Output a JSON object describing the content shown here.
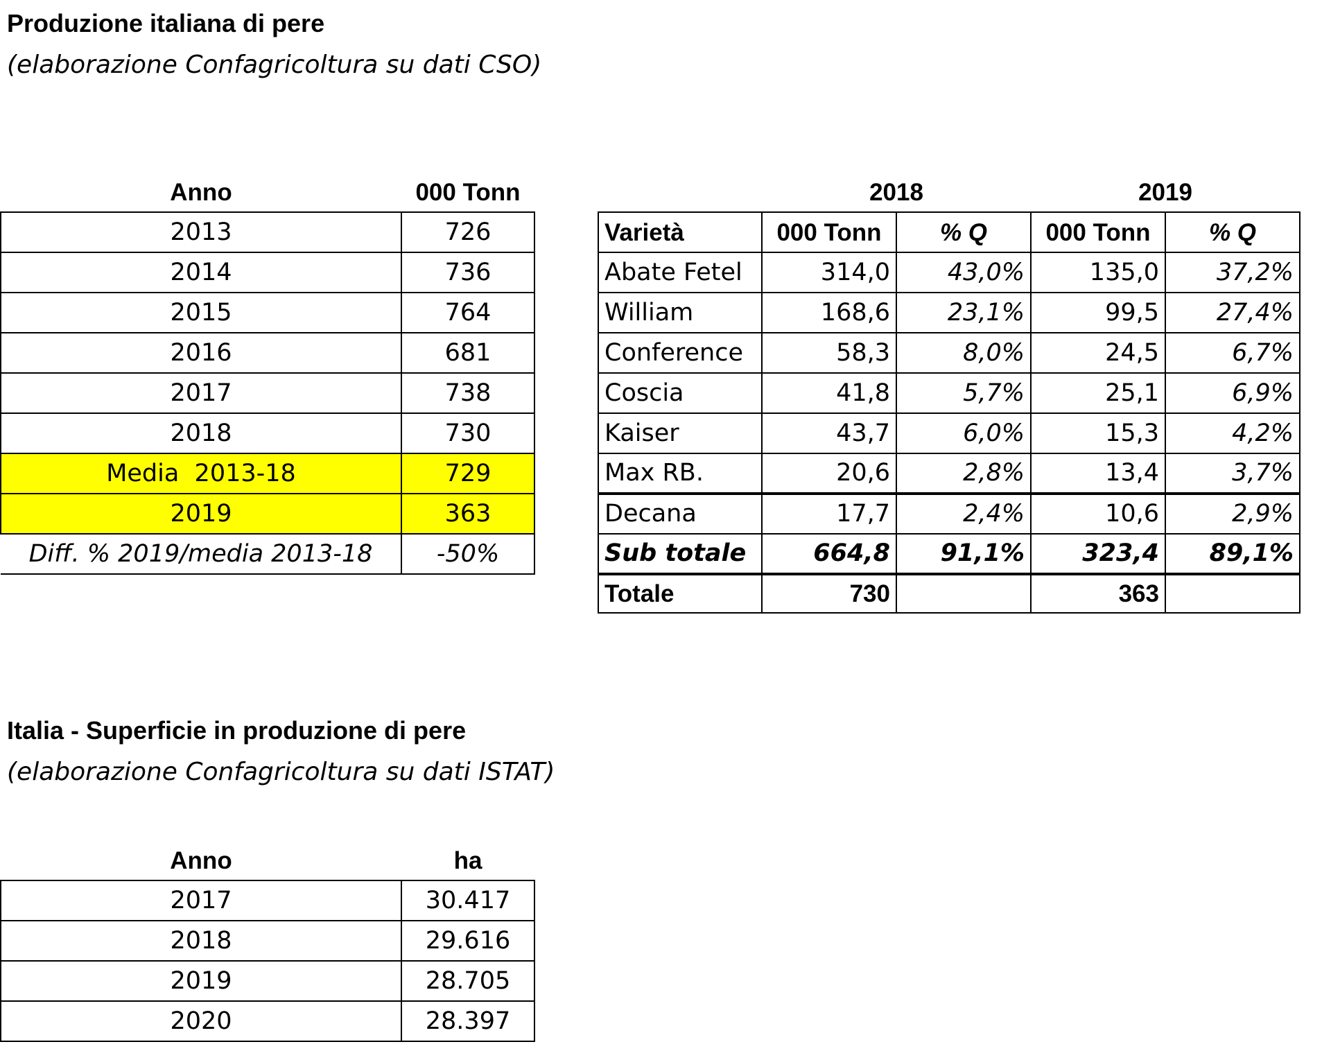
{
  "section1": {
    "title": "Produzione italiana di pere",
    "subtitle": "(elaborazione Confagricoltura su dati CSO)"
  },
  "production_table": {
    "headers": [
      "Anno",
      "000 Tonn"
    ],
    "rows": [
      {
        "year": "2013",
        "value": "726"
      },
      {
        "year": "2014",
        "value": "736"
      },
      {
        "year": "2015",
        "value": "764"
      },
      {
        "year": "2016",
        "value": "681"
      },
      {
        "year": "2017",
        "value": "738"
      },
      {
        "year": "2018",
        "value": "730"
      }
    ],
    "average": {
      "label": "Media  2013-18",
      "value": "729"
    },
    "current": {
      "label": "2019",
      "value": "363"
    },
    "diff": {
      "label": "Diff. % 2019/media 2013-18",
      "value": "-50%"
    }
  },
  "variety_table": {
    "year_headers": [
      "2018",
      "2019"
    ],
    "column_headers": [
      "Varietà",
      "000 Tonn",
      "% Q",
      "000 Tonn",
      "% Q"
    ],
    "rows": [
      {
        "name": "Abate Fetel",
        "t2018": "314,0",
        "q2018": "43,0%",
        "t2019": "135,0",
        "q2019": "37,2%"
      },
      {
        "name": "William",
        "t2018": "168,6",
        "q2018": "23,1%",
        "t2019": "99,5",
        "q2019": "27,4%"
      },
      {
        "name": "Conference",
        "t2018": "58,3",
        "q2018": "8,0%",
        "t2019": "24,5",
        "q2019": "6,7%"
      },
      {
        "name": "Coscia",
        "t2018": "41,8",
        "q2018": "5,7%",
        "t2019": "25,1",
        "q2019": "6,9%"
      },
      {
        "name": "Kaiser",
        "t2018": "43,7",
        "q2018": "6,0%",
        "t2019": "15,3",
        "q2019": "4,2%"
      },
      {
        "name": "Max RB.",
        "t2018": "20,6",
        "q2018": "2,8%",
        "t2019": "13,4",
        "q2019": "3,7%"
      },
      {
        "name": "Decana",
        "t2018": "17,7",
        "q2018": "2,4%",
        "t2019": "10,6",
        "q2019": "2,9%"
      }
    ],
    "subtotal": {
      "name": "Sub totale",
      "t2018": "664,8",
      "q2018": "91,1%",
      "t2019": "323,4",
      "q2019": "89,1%"
    },
    "total": {
      "name": "Totale",
      "t2018": "730",
      "t2019": "363"
    }
  },
  "section2": {
    "title": "Italia - Superficie in produzione di pere",
    "subtitle": "(elaborazione Confagricoltura su dati ISTAT)"
  },
  "area_table": {
    "headers": [
      "Anno",
      "ha"
    ],
    "rows": [
      {
        "year": "2017",
        "value": "30.417"
      },
      {
        "year": "2018",
        "value": "29.616"
      },
      {
        "year": "2019",
        "value": "28.705"
      },
      {
        "year": "2020",
        "value": "28.397"
      }
    ]
  },
  "colors": {
    "highlight": "#ffff00",
    "text": "#000000",
    "background": "#ffffff"
  }
}
